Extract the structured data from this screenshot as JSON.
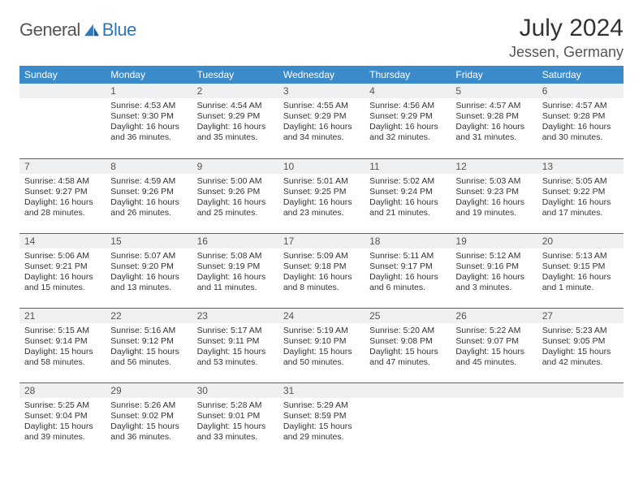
{
  "brand": {
    "general": "General",
    "blue": "Blue"
  },
  "title": "July 2024",
  "location": "Jessen, Germany",
  "colors": {
    "header_bg": "#3b8bca",
    "header_text": "#ffffff",
    "row_divider": "#2f6fa8",
    "daynum_bg": "#eef0f1",
    "logo_blue": "#2f77bb"
  },
  "weekdays": [
    "Sunday",
    "Monday",
    "Tuesday",
    "Wednesday",
    "Thursday",
    "Friday",
    "Saturday"
  ],
  "weeks": [
    [
      {
        "n": "",
        "sr": "",
        "ss": "",
        "dl": ""
      },
      {
        "n": "1",
        "sr": "Sunrise: 4:53 AM",
        "ss": "Sunset: 9:30 PM",
        "dl": "Daylight: 16 hours and 36 minutes."
      },
      {
        "n": "2",
        "sr": "Sunrise: 4:54 AM",
        "ss": "Sunset: 9:29 PM",
        "dl": "Daylight: 16 hours and 35 minutes."
      },
      {
        "n": "3",
        "sr": "Sunrise: 4:55 AM",
        "ss": "Sunset: 9:29 PM",
        "dl": "Daylight: 16 hours and 34 minutes."
      },
      {
        "n": "4",
        "sr": "Sunrise: 4:56 AM",
        "ss": "Sunset: 9:29 PM",
        "dl": "Daylight: 16 hours and 32 minutes."
      },
      {
        "n": "5",
        "sr": "Sunrise: 4:57 AM",
        "ss": "Sunset: 9:28 PM",
        "dl": "Daylight: 16 hours and 31 minutes."
      },
      {
        "n": "6",
        "sr": "Sunrise: 4:57 AM",
        "ss": "Sunset: 9:28 PM",
        "dl": "Daylight: 16 hours and 30 minutes."
      }
    ],
    [
      {
        "n": "7",
        "sr": "Sunrise: 4:58 AM",
        "ss": "Sunset: 9:27 PM",
        "dl": "Daylight: 16 hours and 28 minutes."
      },
      {
        "n": "8",
        "sr": "Sunrise: 4:59 AM",
        "ss": "Sunset: 9:26 PM",
        "dl": "Daylight: 16 hours and 26 minutes."
      },
      {
        "n": "9",
        "sr": "Sunrise: 5:00 AM",
        "ss": "Sunset: 9:26 PM",
        "dl": "Daylight: 16 hours and 25 minutes."
      },
      {
        "n": "10",
        "sr": "Sunrise: 5:01 AM",
        "ss": "Sunset: 9:25 PM",
        "dl": "Daylight: 16 hours and 23 minutes."
      },
      {
        "n": "11",
        "sr": "Sunrise: 5:02 AM",
        "ss": "Sunset: 9:24 PM",
        "dl": "Daylight: 16 hours and 21 minutes."
      },
      {
        "n": "12",
        "sr": "Sunrise: 5:03 AM",
        "ss": "Sunset: 9:23 PM",
        "dl": "Daylight: 16 hours and 19 minutes."
      },
      {
        "n": "13",
        "sr": "Sunrise: 5:05 AM",
        "ss": "Sunset: 9:22 PM",
        "dl": "Daylight: 16 hours and 17 minutes."
      }
    ],
    [
      {
        "n": "14",
        "sr": "Sunrise: 5:06 AM",
        "ss": "Sunset: 9:21 PM",
        "dl": "Daylight: 16 hours and 15 minutes."
      },
      {
        "n": "15",
        "sr": "Sunrise: 5:07 AM",
        "ss": "Sunset: 9:20 PM",
        "dl": "Daylight: 16 hours and 13 minutes."
      },
      {
        "n": "16",
        "sr": "Sunrise: 5:08 AM",
        "ss": "Sunset: 9:19 PM",
        "dl": "Daylight: 16 hours and 11 minutes."
      },
      {
        "n": "17",
        "sr": "Sunrise: 5:09 AM",
        "ss": "Sunset: 9:18 PM",
        "dl": "Daylight: 16 hours and 8 minutes."
      },
      {
        "n": "18",
        "sr": "Sunrise: 5:11 AM",
        "ss": "Sunset: 9:17 PM",
        "dl": "Daylight: 16 hours and 6 minutes."
      },
      {
        "n": "19",
        "sr": "Sunrise: 5:12 AM",
        "ss": "Sunset: 9:16 PM",
        "dl": "Daylight: 16 hours and 3 minutes."
      },
      {
        "n": "20",
        "sr": "Sunrise: 5:13 AM",
        "ss": "Sunset: 9:15 PM",
        "dl": "Daylight: 16 hours and 1 minute."
      }
    ],
    [
      {
        "n": "21",
        "sr": "Sunrise: 5:15 AM",
        "ss": "Sunset: 9:14 PM",
        "dl": "Daylight: 15 hours and 58 minutes."
      },
      {
        "n": "22",
        "sr": "Sunrise: 5:16 AM",
        "ss": "Sunset: 9:12 PM",
        "dl": "Daylight: 15 hours and 56 minutes."
      },
      {
        "n": "23",
        "sr": "Sunrise: 5:17 AM",
        "ss": "Sunset: 9:11 PM",
        "dl": "Daylight: 15 hours and 53 minutes."
      },
      {
        "n": "24",
        "sr": "Sunrise: 5:19 AM",
        "ss": "Sunset: 9:10 PM",
        "dl": "Daylight: 15 hours and 50 minutes."
      },
      {
        "n": "25",
        "sr": "Sunrise: 5:20 AM",
        "ss": "Sunset: 9:08 PM",
        "dl": "Daylight: 15 hours and 47 minutes."
      },
      {
        "n": "26",
        "sr": "Sunrise: 5:22 AM",
        "ss": "Sunset: 9:07 PM",
        "dl": "Daylight: 15 hours and 45 minutes."
      },
      {
        "n": "27",
        "sr": "Sunrise: 5:23 AM",
        "ss": "Sunset: 9:05 PM",
        "dl": "Daylight: 15 hours and 42 minutes."
      }
    ],
    [
      {
        "n": "28",
        "sr": "Sunrise: 5:25 AM",
        "ss": "Sunset: 9:04 PM",
        "dl": "Daylight: 15 hours and 39 minutes."
      },
      {
        "n": "29",
        "sr": "Sunrise: 5:26 AM",
        "ss": "Sunset: 9:02 PM",
        "dl": "Daylight: 15 hours and 36 minutes."
      },
      {
        "n": "30",
        "sr": "Sunrise: 5:28 AM",
        "ss": "Sunset: 9:01 PM",
        "dl": "Daylight: 15 hours and 33 minutes."
      },
      {
        "n": "31",
        "sr": "Sunrise: 5:29 AM",
        "ss": "Sunset: 8:59 PM",
        "dl": "Daylight: 15 hours and 29 minutes."
      },
      {
        "n": "",
        "sr": "",
        "ss": "",
        "dl": ""
      },
      {
        "n": "",
        "sr": "",
        "ss": "",
        "dl": ""
      },
      {
        "n": "",
        "sr": "",
        "ss": "",
        "dl": ""
      }
    ]
  ]
}
